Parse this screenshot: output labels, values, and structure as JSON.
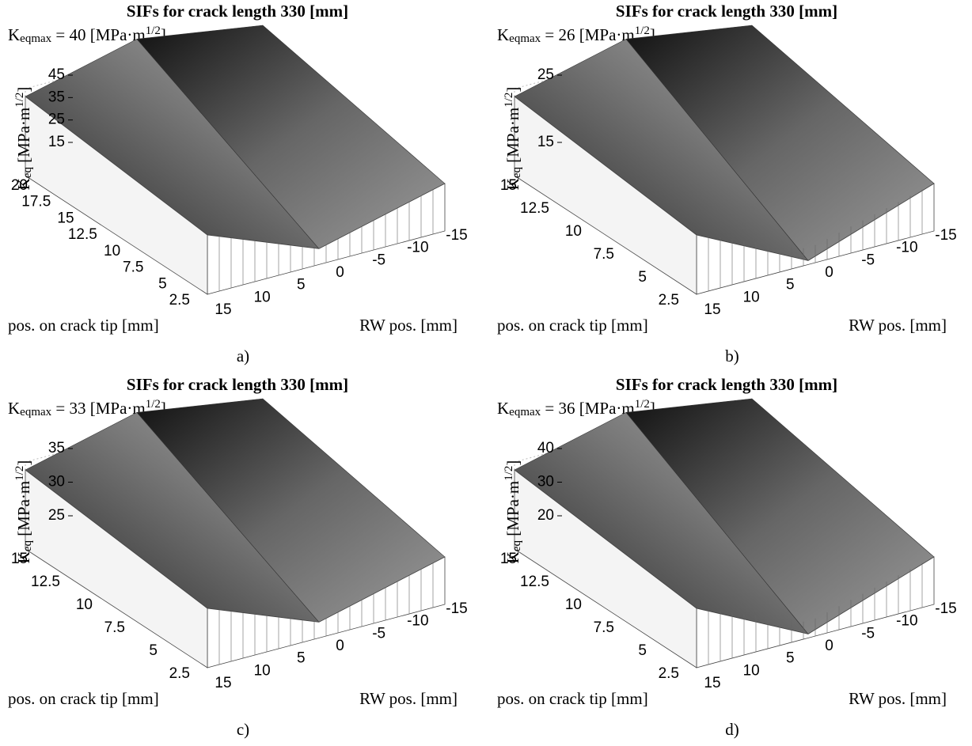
{
  "panels": [
    {
      "title": "SIFs for crack length 330 [mm]",
      "kmax": {
        "symbol": "K",
        "sub": "eqmax",
        "text": " = 40 [MPa·m",
        "sup": "1/2",
        "end": "]"
      },
      "zlabel": {
        "symbol": "K",
        "sub": "eq",
        "text": " [MPa·m",
        "sup": "1/2",
        "end": "]"
      },
      "zticks": [
        15,
        25,
        35,
        45
      ],
      "pos_ticks": [
        20,
        17.5,
        15,
        12.5,
        10,
        7.5,
        5,
        2.5
      ],
      "rw_ticks": [
        15,
        10,
        5,
        0,
        -5,
        -10,
        -15
      ],
      "pos_label": "pos. on crack tip [mm]",
      "rw_label": "RW pos. [mm]",
      "caption": "a)"
    },
    {
      "title": "SIFs for crack length 330 [mm]",
      "kmax": {
        "symbol": "K",
        "sub": "eqmax",
        "text": " = 26 [MPa·m",
        "sup": "1/2",
        "end": "]"
      },
      "zlabel": {
        "symbol": "K",
        "sub": "eq",
        "text": " [MPa·m",
        "sup": "1/2",
        "end": "]"
      },
      "zticks": [
        15,
        25
      ],
      "pos_ticks": [
        15,
        12.5,
        10,
        7.5,
        5,
        2.5
      ],
      "rw_ticks": [
        15,
        10,
        5,
        0,
        -5,
        -10,
        -15
      ],
      "pos_label": "pos. on crack tip [mm]",
      "rw_label": "RW pos. [mm]",
      "caption": "b)"
    },
    {
      "title": "SIFs for crack length 330 [mm]",
      "kmax": {
        "symbol": "K",
        "sub": "eqmax",
        "text": " = 33 [MPa·m",
        "sup": "1/2",
        "end": "]"
      },
      "zlabel": {
        "symbol": "K",
        "sub": "eq",
        "text": " [MPa·m",
        "sup": "1/2",
        "end": "]"
      },
      "zticks": [
        25,
        30,
        35
      ],
      "pos_ticks": [
        15,
        12.5,
        10,
        7.5,
        5,
        2.5
      ],
      "rw_ticks": [
        15,
        10,
        5,
        0,
        -5,
        -10,
        -15
      ],
      "pos_label": "pos. on crack tip [mm]",
      "rw_label": "RW pos. [mm]",
      "caption": "c)"
    },
    {
      "title": "SIFs for crack length 330 [mm]",
      "kmax": {
        "symbol": "K",
        "sub": "eqmax",
        "text": " = 36 [MPa·m",
        "sup": "1/2",
        "end": "]"
      },
      "zlabel": {
        "symbol": "K",
        "sub": "eq",
        "text": " [MPa·m",
        "sup": "1/2",
        "end": "]"
      },
      "zticks": [
        20,
        30,
        40
      ],
      "pos_ticks": [
        15,
        12.5,
        10,
        7.5,
        5,
        2.5
      ],
      "rw_ticks": [
        15,
        10,
        5,
        0,
        -5,
        -10,
        -15
      ],
      "pos_label": "pos. on crack tip [mm]",
      "rw_label": "RW pos. [mm]",
      "caption": "d)"
    }
  ]
}
